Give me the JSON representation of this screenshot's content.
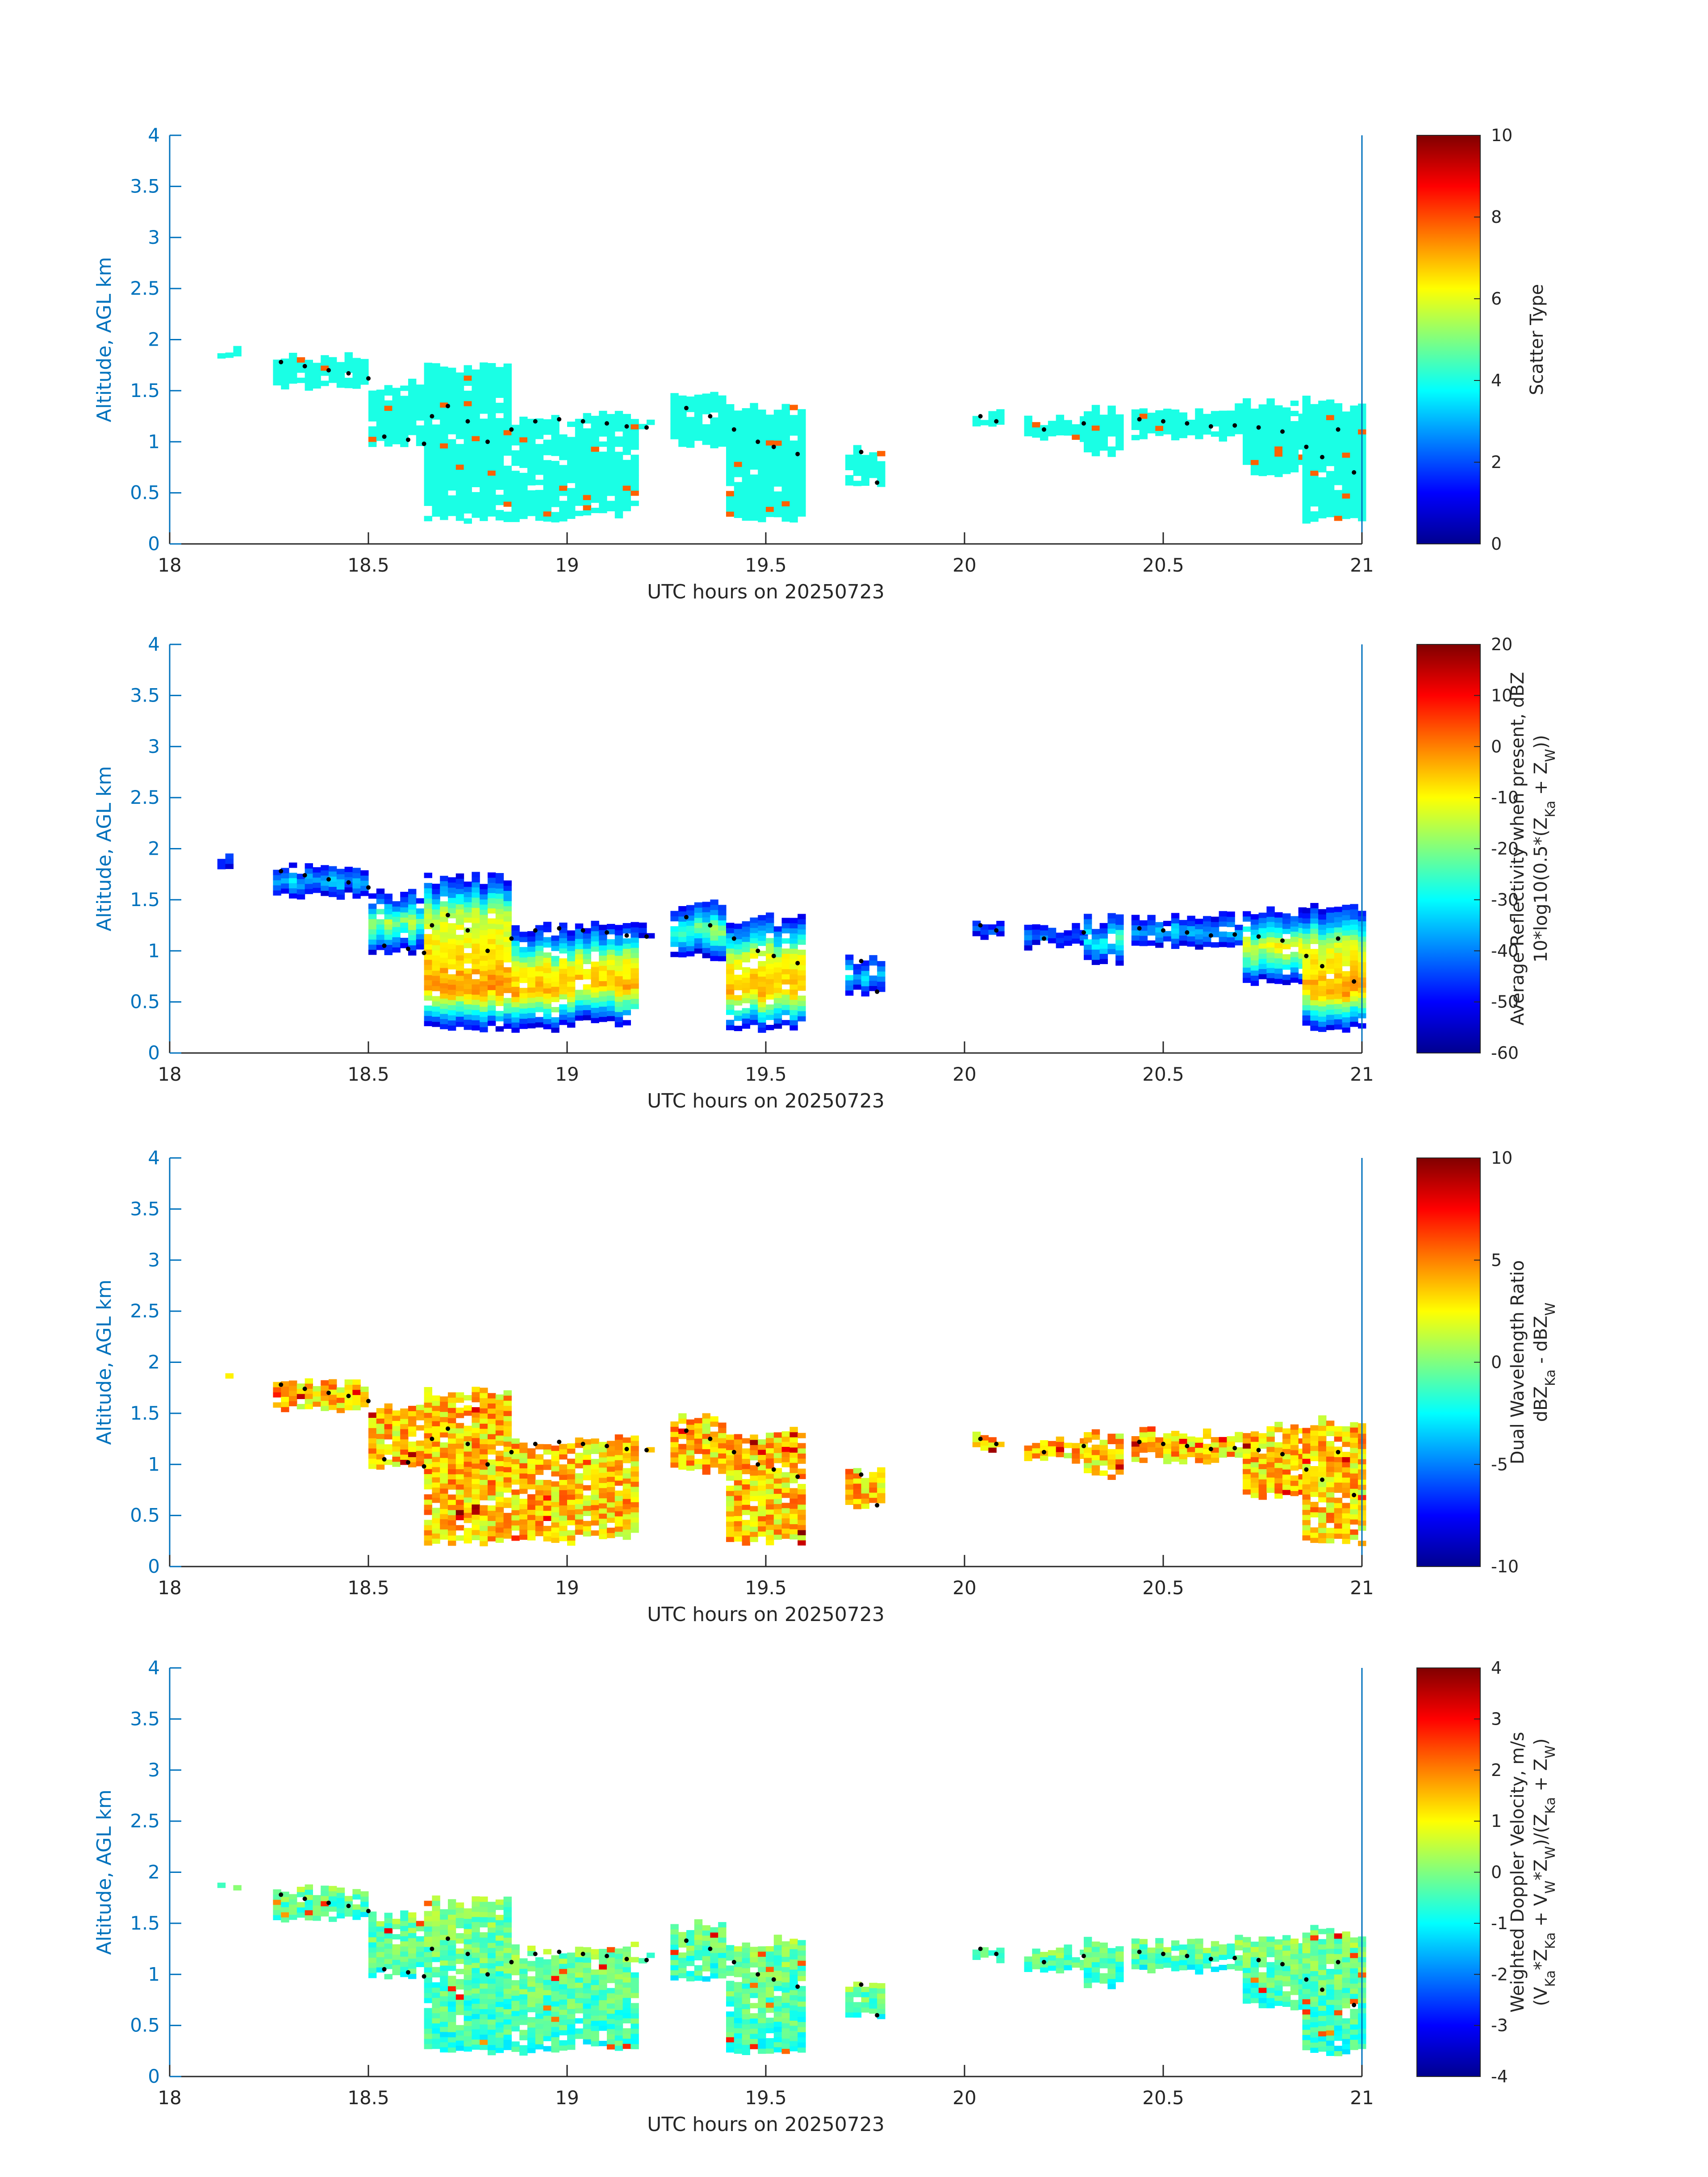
{
  "chart_data": [
    {
      "type": "heatmap",
      "panel": "scatter-type",
      "xlabel": "UTC hours on 20250723",
      "ylabel": "Altitude, AGL km",
      "xlim": [
        18,
        21
      ],
      "ylim": [
        0,
        4
      ],
      "xticks": [
        "18",
        "18.5",
        "19",
        "19.5",
        "20",
        "20.5",
        "21"
      ],
      "yticks": [
        "0",
        "0.5",
        "1",
        "1.5",
        "2",
        "2.5",
        "3",
        "3.5",
        "4"
      ],
      "colorbar": {
        "label_lines": [
          "Scatter Type"
        ],
        "range": [
          0,
          10
        ],
        "ticks": [
          "0",
          "2",
          "4",
          "6",
          "8",
          "10"
        ]
      }
    },
    {
      "type": "heatmap",
      "panel": "reflectivity",
      "xlabel": "UTC hours on 20250723",
      "ylabel": "Altitude, AGL km",
      "xlim": [
        18,
        21
      ],
      "ylim": [
        0,
        4
      ],
      "xticks": [
        "18",
        "18.5",
        "19",
        "19.5",
        "20",
        "20.5",
        "21"
      ],
      "yticks": [
        "0",
        "0.5",
        "1",
        "1.5",
        "2",
        "2.5",
        "3",
        "3.5",
        "4"
      ],
      "colorbar": {
        "label_lines": [
          "Average Reflectivity when present, dBZ",
          "10*log10(0.5*(Z_Ka + Z_W))"
        ],
        "range": [
          -60,
          20
        ],
        "ticks": [
          "-60",
          "-50",
          "-40",
          "-30",
          "-20",
          "-10",
          "0",
          "10",
          "20"
        ]
      }
    },
    {
      "type": "heatmap",
      "panel": "dual-wavelength-ratio",
      "xlabel": "UTC hours on 20250723",
      "ylabel": "Altitude, AGL km",
      "xlim": [
        18,
        21
      ],
      "ylim": [
        0,
        4
      ],
      "xticks": [
        "18",
        "18.5",
        "19",
        "19.5",
        "20",
        "20.5",
        "21"
      ],
      "yticks": [
        "0",
        "0.5",
        "1",
        "1.5",
        "2",
        "2.5",
        "3",
        "3.5",
        "4"
      ],
      "colorbar": {
        "label_lines": [
          "Dual Wavelength Ratio",
          "dBZ_Ka - dBZ_W"
        ],
        "range": [
          -10,
          10
        ],
        "ticks": [
          "-10",
          "-5",
          "0",
          "5",
          "10"
        ]
      }
    },
    {
      "type": "heatmap",
      "panel": "doppler-velocity",
      "xlabel": "UTC hours on 20250723",
      "ylabel": "Altitude, AGL km",
      "xlim": [
        18,
        21
      ],
      "ylim": [
        0,
        4
      ],
      "xticks": [
        "18",
        "18.5",
        "19",
        "19.5",
        "20",
        "20.5",
        "21"
      ],
      "yticks": [
        "0",
        "0.5",
        "1",
        "1.5",
        "2",
        "2.5",
        "3",
        "3.5",
        "4"
      ],
      "colorbar": {
        "label_lines": [
          "Weighted Doppler Velocity, m/s",
          "(V_Ka*Z_Ka + V_W*Z_W)/(Z_Ka + Z_W)"
        ],
        "range": [
          -4,
          4
        ],
        "ticks": [
          "-4",
          "-3",
          "-2",
          "-1",
          "0",
          "1",
          "2",
          "3",
          "4"
        ]
      }
    }
  ],
  "cloud_segments": [
    {
      "x0": 18.12,
      "x1": 18.17,
      "base": 1.8,
      "top": 1.95
    },
    {
      "x0": 18.26,
      "x1": 18.5,
      "base": 1.5,
      "top": 1.85
    },
    {
      "x0": 18.5,
      "x1": 18.64,
      "base": 0.95,
      "top": 1.6
    },
    {
      "x0": 18.64,
      "x1": 18.86,
      "base": 0.2,
      "top": 1.75
    },
    {
      "x0": 18.86,
      "x1": 19.02,
      "base": 0.2,
      "top": 1.25
    },
    {
      "x0": 19.02,
      "x1": 19.18,
      "base": 0.25,
      "top": 1.3
    },
    {
      "x0": 19.18,
      "x1": 19.22,
      "base": 1.1,
      "top": 1.25
    },
    {
      "x0": 19.26,
      "x1": 19.4,
      "base": 0.9,
      "top": 1.5
    },
    {
      "x0": 19.4,
      "x1": 19.6,
      "base": 0.2,
      "top": 1.35
    },
    {
      "x0": 19.7,
      "x1": 19.8,
      "base": 0.55,
      "top": 0.95
    },
    {
      "x0": 20.02,
      "x1": 20.1,
      "base": 1.1,
      "top": 1.3
    },
    {
      "x0": 20.15,
      "x1": 20.3,
      "base": 1.0,
      "top": 1.25
    },
    {
      "x0": 20.3,
      "x1": 20.4,
      "base": 0.85,
      "top": 1.35
    },
    {
      "x0": 20.42,
      "x1": 20.7,
      "base": 1.0,
      "top": 1.35
    },
    {
      "x0": 20.7,
      "x1": 20.85,
      "base": 0.65,
      "top": 1.4
    },
    {
      "x0": 20.85,
      "x1": 21.0,
      "base": 0.2,
      "top": 1.45
    }
  ],
  "dotted_layer": [
    [
      18.28,
      1.78
    ],
    [
      18.34,
      1.74
    ],
    [
      18.4,
      1.7
    ],
    [
      18.45,
      1.67
    ],
    [
      18.5,
      1.62
    ],
    [
      18.54,
      1.05
    ],
    [
      18.6,
      1.02
    ],
    [
      18.64,
      0.98
    ],
    [
      18.66,
      1.25
    ],
    [
      18.7,
      1.35
    ],
    [
      18.75,
      1.2
    ],
    [
      18.8,
      1.0
    ],
    [
      18.86,
      1.12
    ],
    [
      18.92,
      1.2
    ],
    [
      18.98,
      1.22
    ],
    [
      19.04,
      1.2
    ],
    [
      19.1,
      1.18
    ],
    [
      19.15,
      1.15
    ],
    [
      19.2,
      1.14
    ],
    [
      19.3,
      1.33
    ],
    [
      19.36,
      1.25
    ],
    [
      19.42,
      1.12
    ],
    [
      19.48,
      1.0
    ],
    [
      19.52,
      0.95
    ],
    [
      19.58,
      0.88
    ],
    [
      19.74,
      0.9
    ],
    [
      19.78,
      0.6
    ],
    [
      20.04,
      1.25
    ],
    [
      20.08,
      1.2
    ],
    [
      20.2,
      1.12
    ],
    [
      20.3,
      1.18
    ],
    [
      20.44,
      1.22
    ],
    [
      20.5,
      1.2
    ],
    [
      20.56,
      1.18
    ],
    [
      20.62,
      1.15
    ],
    [
      20.68,
      1.16
    ],
    [
      20.74,
      1.14
    ],
    [
      20.8,
      1.1
    ],
    [
      20.86,
      0.95
    ],
    [
      20.9,
      0.85
    ],
    [
      20.94,
      1.12
    ],
    [
      20.98,
      0.7
    ]
  ]
}
